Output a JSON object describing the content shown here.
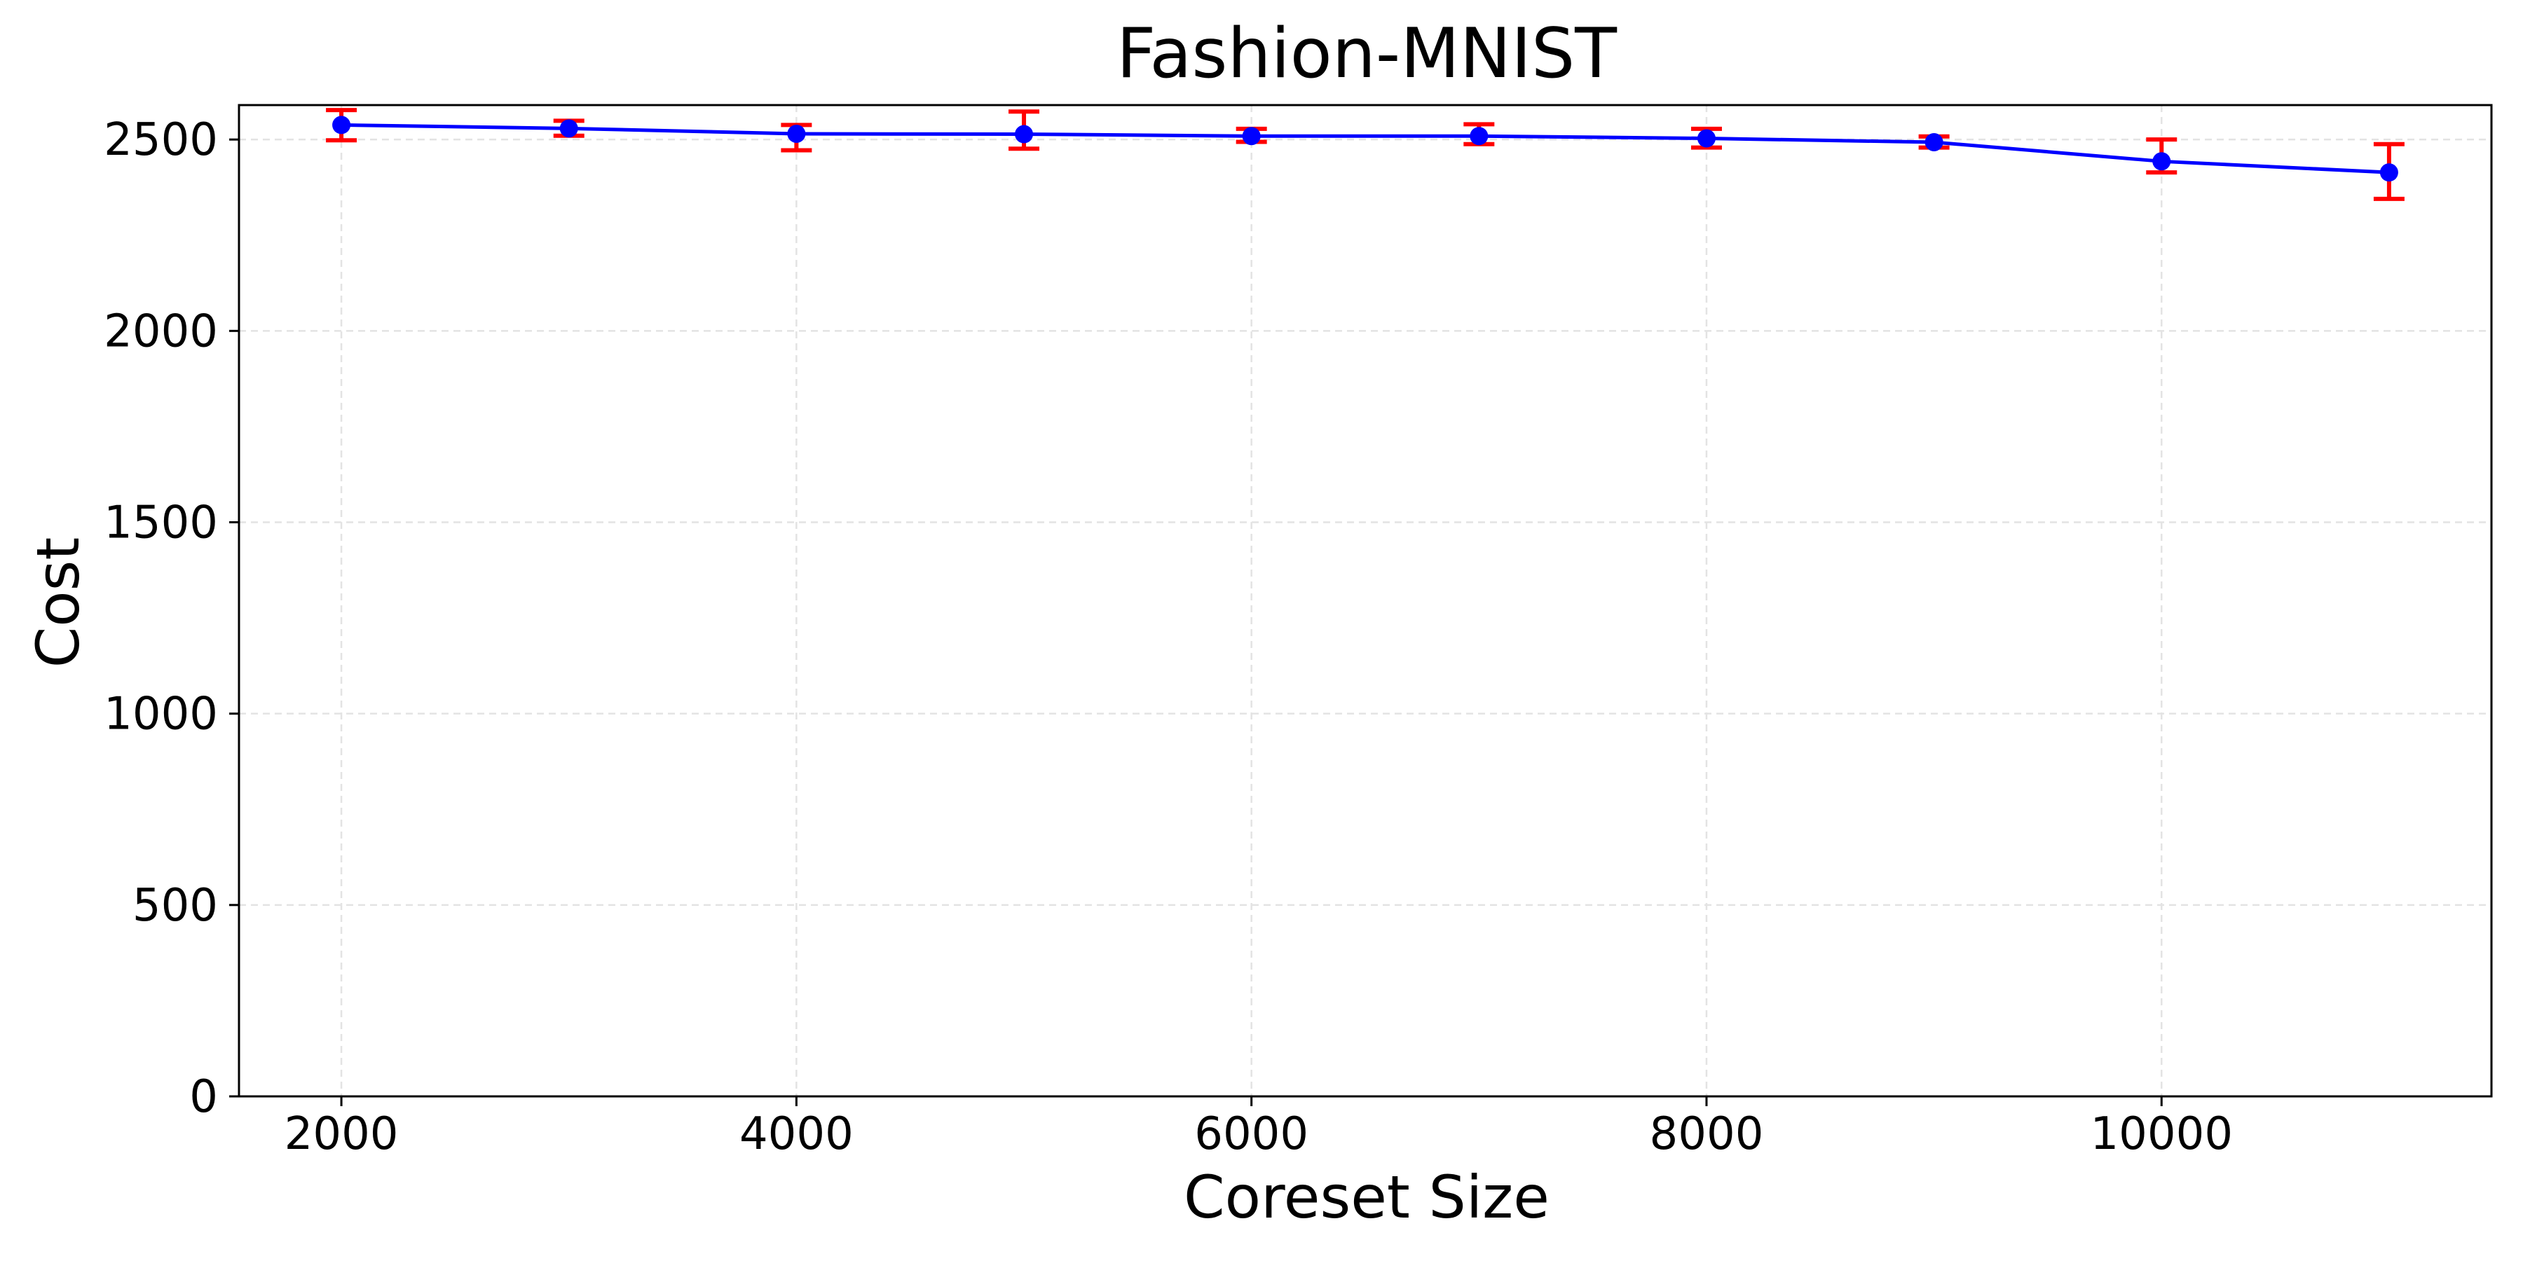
{
  "chart_data": {
    "type": "line",
    "title": "Fashion-MNIST",
    "xlabel": "Coreset Size",
    "ylabel": "Cost",
    "xlim": [
      1550,
      11450
    ],
    "ylim": [
      0,
      2590
    ],
    "xticks": [
      2000,
      4000,
      6000,
      8000,
      10000
    ],
    "yticks": [
      0,
      500,
      1000,
      1500,
      2000,
      2500
    ],
    "grid": true,
    "line_color": "#0000ff",
    "error_color": "#ff0000",
    "series": [
      {
        "x": [
          2000,
          3000,
          4000,
          5000,
          6000,
          7000,
          8000,
          9000,
          10000,
          11000
        ],
        "y": [
          2538,
          2529,
          2515,
          2514,
          2509,
          2509,
          2503,
          2493,
          2443,
          2414
        ],
        "err_low": [
          2498,
          2510,
          2472,
          2476,
          2494,
          2488,
          2479,
          2479,
          2414,
          2345
        ],
        "err_high": [
          2577,
          2549,
          2538,
          2573,
          2528,
          2540,
          2528,
          2508,
          2500,
          2488
        ]
      }
    ]
  }
}
